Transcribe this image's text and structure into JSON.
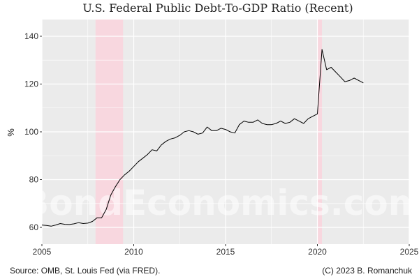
{
  "chart_data": {
    "type": "line",
    "title": "U.S. Federal Public Debt-To-GDP Ratio (Recent)",
    "xlabel": "",
    "ylabel": "%",
    "xlim": [
      2005,
      2025
    ],
    "ylim": [
      53,
      147
    ],
    "x_ticks": [
      2005,
      2010,
      2015,
      2020,
      2025
    ],
    "y_ticks": [
      60,
      80,
      100,
      120,
      140
    ],
    "grid": true,
    "recessions": [
      [
        2007.92,
        2009.42
      ],
      [
        2020.0,
        2020.25
      ]
    ],
    "series": [
      {
        "x": [
          2005.0,
          2005.25,
          2005.5,
          2005.75,
          2006.0,
          2006.25,
          2006.5,
          2006.75,
          2007.0,
          2007.25,
          2007.5,
          2007.75,
          2008.0,
          2008.25,
          2008.5,
          2008.75,
          2009.0,
          2009.25,
          2009.5,
          2009.75,
          2010.0,
          2010.25,
          2010.5,
          2010.75,
          2011.0,
          2011.25,
          2011.5,
          2011.75,
          2012.0,
          2012.25,
          2012.5,
          2012.75,
          2013.0,
          2013.25,
          2013.5,
          2013.75,
          2014.0,
          2014.25,
          2014.5,
          2014.75,
          2015.0,
          2015.25,
          2015.5,
          2015.75,
          2016.0,
          2016.25,
          2016.5,
          2016.75,
          2017.0,
          2017.25,
          2017.5,
          2017.75,
          2018.0,
          2018.25,
          2018.5,
          2018.75,
          2019.0,
          2019.25,
          2019.5,
          2019.75,
          2020.0,
          2020.25,
          2020.5,
          2020.75,
          2021.0,
          2021.25,
          2021.5,
          2021.75,
          2022.0,
          2022.25,
          2022.5
        ],
        "y": [
          61.0,
          60.8,
          60.5,
          61.0,
          61.6,
          61.3,
          61.2,
          61.5,
          62.0,
          61.6,
          61.8,
          62.5,
          64.0,
          64.0,
          67.5,
          73.5,
          77.0,
          80.0,
          82.0,
          83.5,
          85.5,
          87.5,
          89.0,
          90.5,
          92.5,
          92.0,
          94.5,
          96.0,
          97.0,
          97.5,
          98.5,
          100.0,
          100.5,
          100.0,
          99.0,
          99.5,
          102.0,
          100.5,
          100.5,
          101.5,
          101.0,
          100.0,
          99.5,
          103.0,
          104.5,
          104.0,
          104.0,
          105.0,
          103.5,
          103.0,
          103.0,
          103.5,
          104.5,
          103.5,
          104.0,
          105.5,
          104.5,
          103.5,
          105.5,
          106.5,
          107.5,
          134.5,
          126.0,
          127.0,
          125.0,
          123.0,
          121.0,
          121.5,
          122.5,
          121.5,
          120.5
        ]
      }
    ]
  },
  "footer": {
    "source": "Source: OMB, St. Louis Fed (via FRED).",
    "copyright": "(C) 2023 B. Romanchuk"
  },
  "watermark": "BondEconomics.com",
  "colors": {
    "panel_bg": "#ebebeb",
    "grid": "#ffffff",
    "recession": "#f8d7df",
    "line": "#000000"
  }
}
